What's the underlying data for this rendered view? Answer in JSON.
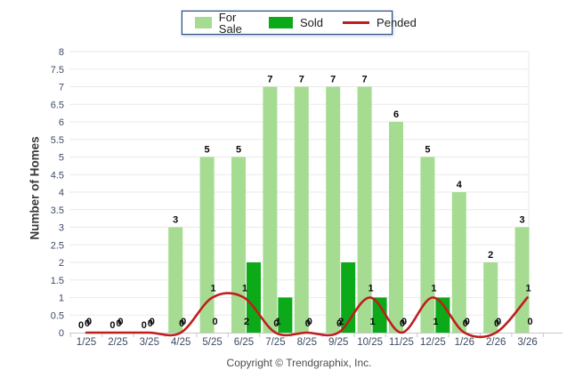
{
  "legend": {
    "items": [
      {
        "label": "For Sale",
        "type": "swatch",
        "color": "#A5DC91"
      },
      {
        "label": "Sold",
        "type": "swatch",
        "color": "#0CA919"
      },
      {
        "label": "Pended",
        "type": "line",
        "color": "#BE1E1E"
      }
    ]
  },
  "ylabel": "Number of Homes",
  "copyright": "Copyright © Trendgraphix, Inc.",
  "chart_data": {
    "type": "bar",
    "subtype": "grouped-bars-with-smoothed-line",
    "categories": [
      "1/25",
      "2/25",
      "3/25",
      "4/25",
      "5/25",
      "6/25",
      "7/25",
      "8/25",
      "9/25",
      "10/25",
      "11/25",
      "12/25",
      "1/26",
      "2/26",
      "3/26"
    ],
    "series": [
      {
        "name": "For Sale",
        "type": "bar",
        "color": "#A5DC91",
        "values": [
          0,
          0,
          0,
          3,
          5,
          5,
          7,
          7,
          7,
          7,
          6,
          5,
          4,
          2,
          3
        ]
      },
      {
        "name": "Sold",
        "type": "bar",
        "color": "#0CA919",
        "values": [
          0,
          0,
          0,
          0,
          0,
          2,
          1,
          0,
          2,
          1,
          0,
          1,
          0,
          0,
          0
        ]
      },
      {
        "name": "Pended",
        "type": "line",
        "color": "#BE1E1E",
        "values": [
          0,
          0,
          0,
          0,
          1,
          1,
          0,
          0,
          0,
          1,
          0,
          1,
          0,
          0,
          1
        ]
      }
    ],
    "title": "",
    "xlabel": "",
    "ylabel": "Number of Homes",
    "ylim": [
      0,
      8
    ],
    "ytick_step": 0.5,
    "grid": true,
    "value_labels": true,
    "legend_position": "top-center",
    "colors": {
      "grid": "#EAEAEA",
      "axis": "#C8C8C8",
      "tick_labels": "#3D4A63",
      "value_labels": "#0a0a0a"
    }
  }
}
